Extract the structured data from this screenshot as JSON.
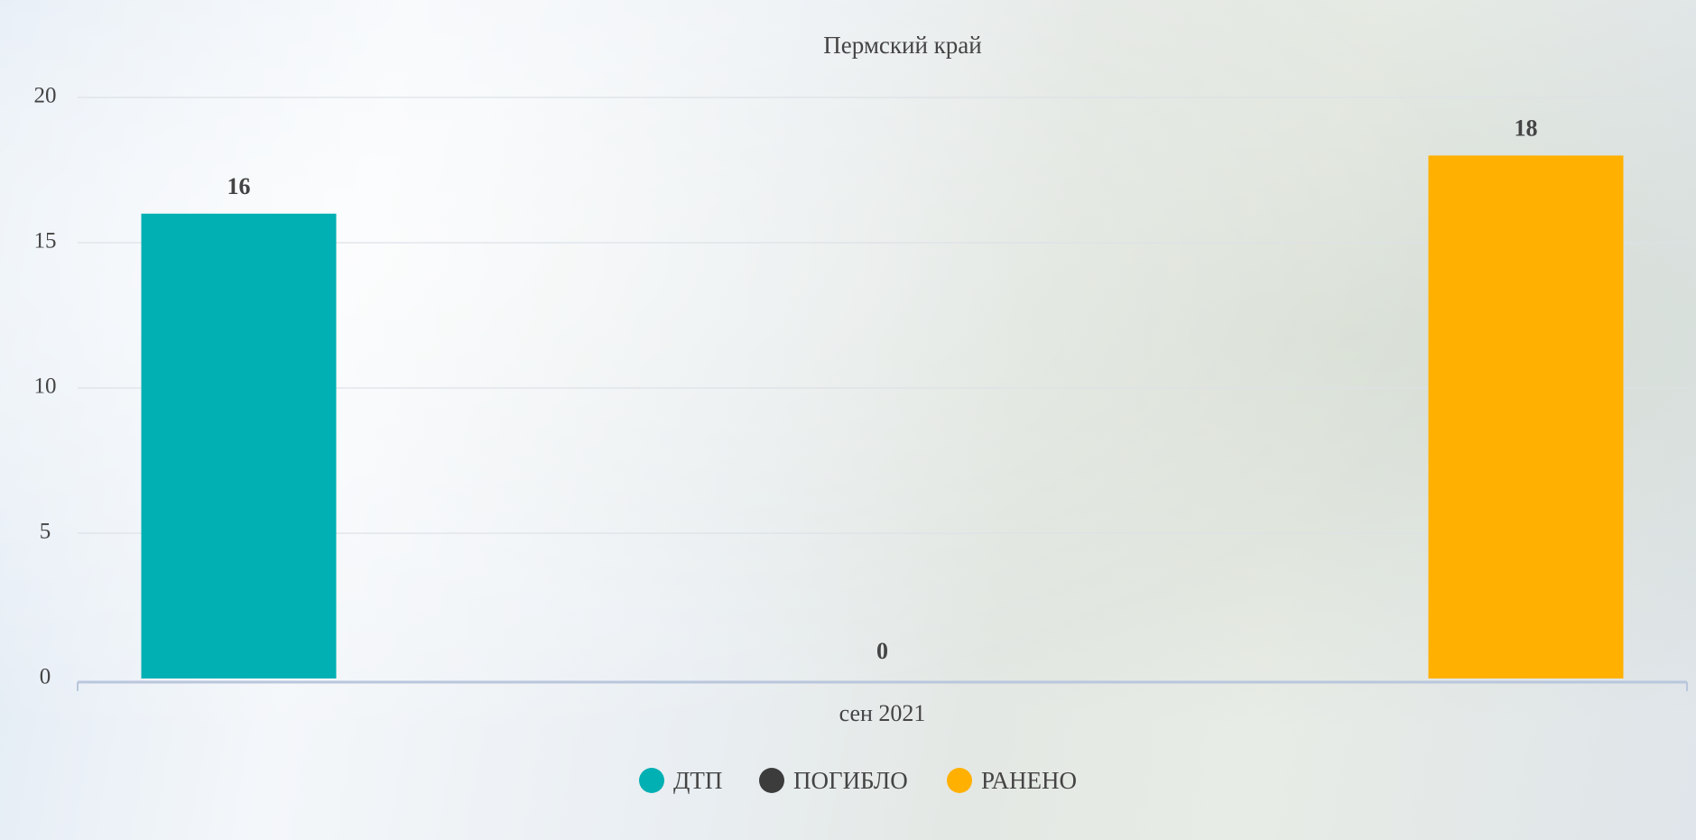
{
  "chart_data": {
    "type": "bar",
    "title": "Пермский край",
    "categories": [
      "сен 2021"
    ],
    "series": [
      {
        "name": "ДТП",
        "color": "#00b0b3",
        "values": [
          16
        ]
      },
      {
        "name": "ПОГИБЛО",
        "color": "#3c3c3c",
        "values": [
          0
        ]
      },
      {
        "name": "РАНЕНО",
        "color": "#ffb000",
        "values": [
          18
        ]
      }
    ],
    "ylim": [
      0,
      20
    ],
    "yticks": [
      0,
      5,
      10,
      15,
      20
    ],
    "grid": true
  }
}
